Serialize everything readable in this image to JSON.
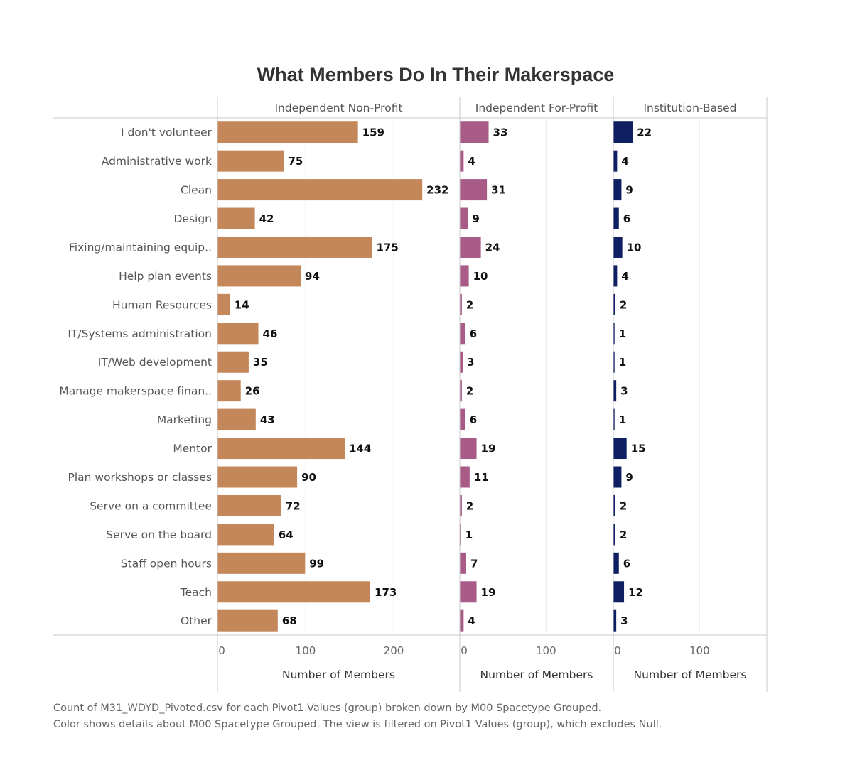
{
  "chart_data": {
    "type": "bar",
    "orientation": "horizontal",
    "title": "What Members Do In Their Makerspace",
    "categories": [
      "I don't volunteer",
      "Administrative work",
      "Clean",
      "Design",
      "Fixing/maintaining equip..",
      "Help plan events",
      "Human Resources",
      "IT/Systems administration",
      "IT/Web development",
      "Manage makerspace finan..",
      "Marketing",
      "Mentor",
      "Plan workshops or classes",
      "Serve on a committee",
      "Serve on the board",
      "Staff open hours",
      "Teach",
      "Other"
    ],
    "series": [
      {
        "name": "Independent Non-Profit",
        "color": "#c4875a",
        "values": [
          159,
          75,
          232,
          42,
          175,
          94,
          14,
          46,
          35,
          26,
          43,
          144,
          90,
          72,
          64,
          99,
          173,
          68
        ],
        "xlim": [
          0,
          275
        ],
        "ticks": [
          "0",
          "100",
          "200"
        ],
        "xlabel": "Number of Members"
      },
      {
        "name": "Independent For-Profit",
        "color": "#a95b88",
        "values": [
          33,
          4,
          31,
          9,
          24,
          10,
          2,
          6,
          3,
          2,
          6,
          19,
          11,
          2,
          1,
          7,
          19,
          4
        ],
        "xlim": [
          0,
          178
        ],
        "ticks": [
          "0",
          "100"
        ],
        "xlabel": "Number of Members"
      },
      {
        "name": "Institution-Based",
        "color": "#0e1f62",
        "values": [
          22,
          4,
          9,
          6,
          10,
          4,
          2,
          1,
          1,
          3,
          1,
          15,
          9,
          2,
          2,
          6,
          12,
          3
        ],
        "xlim": [
          0,
          178
        ],
        "ticks": [
          "0",
          "100"
        ],
        "xlabel": "Number of Members"
      }
    ],
    "grid": true
  },
  "caption": {
    "line1": "Count of M31_WDYD_Pivoted.csv for each Pivot1 Values (group) broken down by M00 Spacetype Grouped.",
    "line2": "Color shows details about M00 Spacetype Grouped. The view is filtered on Pivot1 Values (group), which excludes Null."
  }
}
